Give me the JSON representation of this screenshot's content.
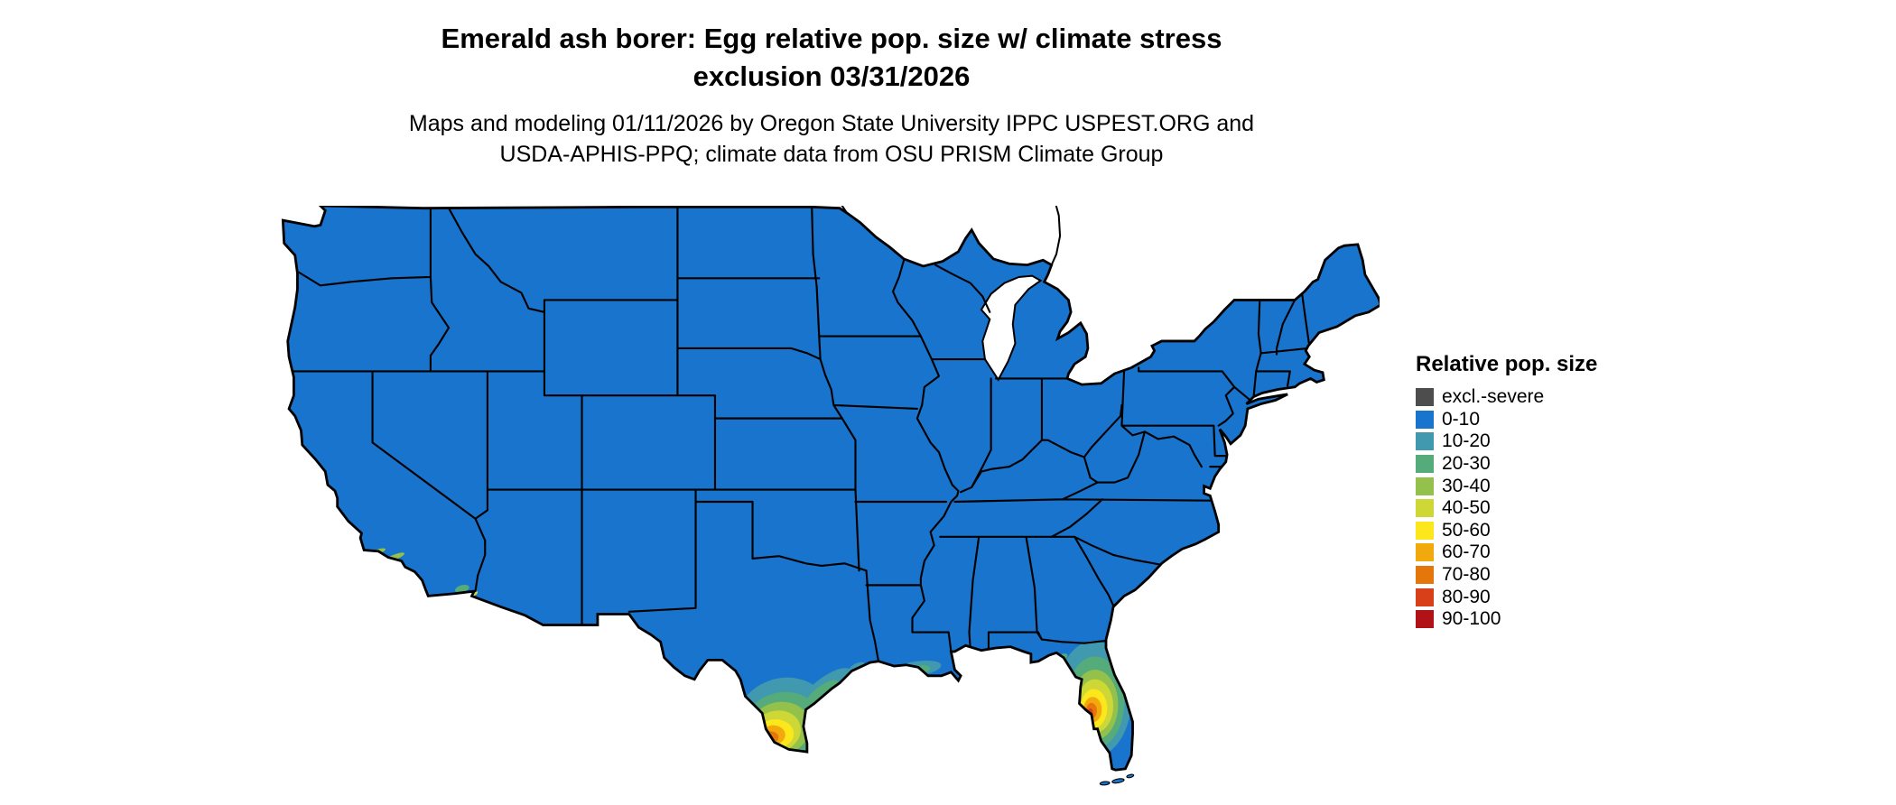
{
  "title": {
    "line1": "Emerald ash borer: Egg relative pop. size w/ climate stress",
    "line2": "exclusion 03/31/2026"
  },
  "subtitle": {
    "line1": "Maps and modeling 01/11/2026 by Oregon State University IPPC USPEST.ORG and",
    "line2": "USDA-APHIS-PPQ; climate data from OSU PRISM Climate Group"
  },
  "legend": {
    "title": "Relative pop. size",
    "items": [
      {
        "label": "excl.-severe",
        "color": "#4d4d4d"
      },
      {
        "label": "0-10",
        "color": "#1874cd"
      },
      {
        "label": "10-20",
        "color": "#4099ae"
      },
      {
        "label": "20-30",
        "color": "#55ab79"
      },
      {
        "label": "30-40",
        "color": "#94c14c"
      },
      {
        "label": "40-50",
        "color": "#cdd837"
      },
      {
        "label": "50-60",
        "color": "#fce61c"
      },
      {
        "label": "60-70",
        "color": "#f2a90d"
      },
      {
        "label": "70-80",
        "color": "#e5760c"
      },
      {
        "label": "80-90",
        "color": "#d8401a"
      },
      {
        "label": "90-100",
        "color": "#b01218"
      }
    ]
  },
  "map": {
    "land_color": "#1874cd",
    "water_color": "#ffffff",
    "border_color": "#000000"
  }
}
